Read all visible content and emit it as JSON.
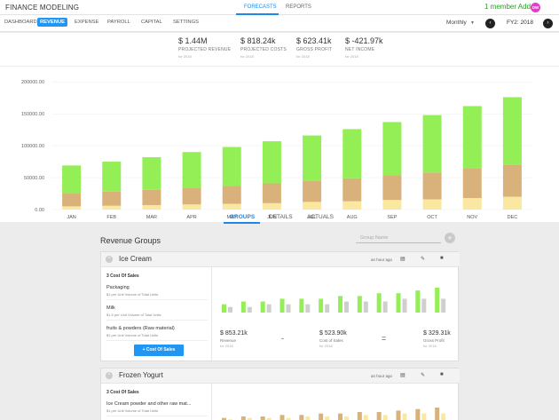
{
  "app": {
    "title": "FINANCE MODELING",
    "tabs": [
      {
        "label": "FORECASTS",
        "active": true
      },
      {
        "label": "REPORTS",
        "active": false
      }
    ],
    "member_add": "1 member Add",
    "avatar": "DW"
  },
  "subnav": {
    "tabs": [
      {
        "label": "DASHBOARD",
        "active": false
      },
      {
        "label": "REVENUE",
        "active": true
      },
      {
        "label": "EXPENSE",
        "active": false
      },
      {
        "label": "PAYROLL",
        "active": false
      },
      {
        "label": "CAPITAL",
        "active": false
      },
      {
        "label": "SETTINGS",
        "active": false
      }
    ],
    "period": "Monthly",
    "fiscal_year": "FY2: 2018"
  },
  "kpis": [
    {
      "value": "$ 1.44M",
      "label": "PROJECTED REVENUE",
      "sub": "for 2018"
    },
    {
      "value": "$ 818.24k",
      "label": "PROJECTED COSTS",
      "sub": "for 2018"
    },
    {
      "value": "$ 623.41k",
      "label": "GROSS PROFIT",
      "sub": "for 2018"
    },
    {
      "value": "$ -421.97k",
      "label": "NET INCOME",
      "sub": "for 2018"
    }
  ],
  "chart_data": {
    "type": "bar",
    "stacked": true,
    "categories": [
      "JAN",
      "FEB",
      "MAR",
      "APR",
      "MAY",
      "JUN",
      "JUL",
      "AUG",
      "SEP",
      "OCT",
      "NOV",
      "DEC"
    ],
    "ytick_labels": [
      "0.00",
      "50000.00",
      "100000.00",
      "150000.00",
      "200000.00"
    ],
    "ylim": [
      0,
      210000
    ],
    "series": [
      {
        "color": "#fbe8a0",
        "values": [
          5000,
          6000,
          7000,
          8000,
          9000,
          10000,
          12000,
          13000,
          15000,
          16000,
          18000,
          20000
        ]
      },
      {
        "color": "#d8b27a",
        "values": [
          20000,
          22000,
          24000,
          26000,
          28000,
          31000,
          33000,
          36000,
          39000,
          42000,
          46000,
          50000
        ]
      },
      {
        "color": "#94ee56",
        "values": [
          44000,
          47000,
          51000,
          56000,
          61000,
          66000,
          71000,
          77000,
          83000,
          90000,
          98000,
          106000
        ]
      }
    ]
  },
  "section_tabs": [
    {
      "label": "GROUPS",
      "active": true
    },
    {
      "label": "DETAILS",
      "active": false
    },
    {
      "label": "ACTUALS",
      "active": false
    }
  ],
  "revenue_groups": {
    "title": "Revenue Groups",
    "search_placeholder": "Group Name",
    "add_icon": "plus-icon"
  },
  "groups": [
    {
      "name": "Ice Cream",
      "time": "an hour ago",
      "cost_title": "3 Cost Of Sales",
      "items": [
        {
          "name": "Packaging",
          "sub": "$1 per Unit Volume of Total Units"
        },
        {
          "name": "Milk",
          "sub": "$1.5 per Unit Volume of Total Units"
        },
        {
          "name": "fruits & powders (Raw material)",
          "sub": "$1 per Unit Volume of Total Units"
        }
      ],
      "cost_button": "+ Cost Of Sales",
      "summary": [
        {
          "value": "$ 853.21k",
          "label": "Revenue",
          "sub": "for 2018"
        },
        {
          "value": "$ 523.90k",
          "label": "Cost of Sales",
          "sub": "for 2018"
        },
        {
          "value": "$ 329.31k",
          "label": "Gross Profit",
          "sub": "for 2018"
        }
      ],
      "operators": [
        "-",
        "="
      ],
      "mini_chart": {
        "type": "bar",
        "series": [
          {
            "color": "#94ee56",
            "values": [
              3,
              4,
              4,
              5,
              5,
              5,
              6,
              6,
              7,
              7,
              8,
              9
            ]
          },
          {
            "color": "#cfcfcf",
            "values": [
              2,
              2,
              3,
              3,
              3,
              3,
              4,
              4,
              4,
              5,
              5,
              5
            ]
          }
        ]
      }
    },
    {
      "name": "Frozen Yogurt",
      "time": "an hour ago",
      "cost_title": "3 Cost Of Sales",
      "items": [
        {
          "name": "Ice Cream powder and other raw mat...",
          "sub": "$1 per Unit Volume of Total Units"
        }
      ],
      "mini_chart": {
        "type": "bar",
        "series": [
          {
            "color": "#d8b27a",
            "values": [
              2,
              3,
              3,
              4,
              4,
              5,
              5,
              6,
              6,
              7,
              8,
              9
            ]
          },
          {
            "color": "#fbe8a0",
            "values": [
              1,
              2,
              2,
              2,
              3,
              3,
              3,
              4,
              4,
              5,
              5,
              5
            ]
          }
        ]
      }
    }
  ]
}
